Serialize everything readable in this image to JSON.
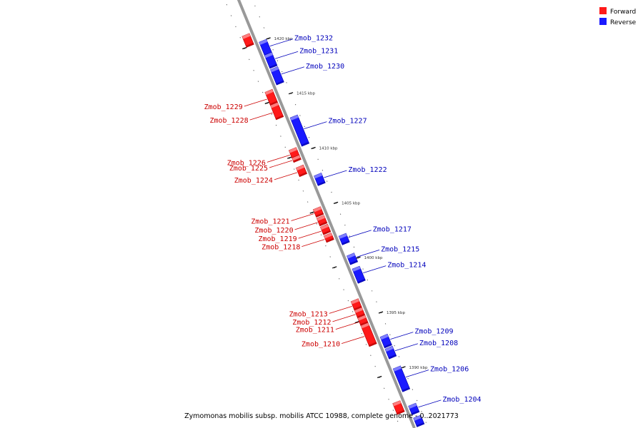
{
  "colors": {
    "forward": "#ff1a1a",
    "forward_dark": "#b00000",
    "forward_light": "#ff9090",
    "reverse": "#1a1aff",
    "reverse_dark": "#0000a8",
    "reverse_light": "#8f8fff",
    "forward_label": "#cc0000",
    "reverse_label": "#0000bb",
    "axis": "#999999"
  },
  "legend": [
    {
      "label": "Forward",
      "strand": "forward"
    },
    {
      "label": "Reverse",
      "strand": "reverse"
    }
  ],
  "caption": "Zymomonas mobilis subsp. mobilis ATCC 10988, complete genome - 0..2021773",
  "ticks": [
    {
      "kbp": 1420,
      "label": "1420 kbp"
    },
    {
      "kbp": 1415,
      "label": "1415 kbp"
    },
    {
      "kbp": 1410,
      "label": "1410 kbp"
    },
    {
      "kbp": 1405,
      "label": "1405 kbp"
    },
    {
      "kbp": 1400,
      "label": "1400 kbp"
    },
    {
      "kbp": 1395,
      "label": "1395 kbp"
    },
    {
      "kbp": 1390,
      "label": "1390 kbp"
    }
  ],
  "genes": [
    {
      "name": "",
      "strand": "forward",
      "kbp": 1421.0,
      "len": 1.0
    },
    {
      "name": "Zmob_1232",
      "strand": "reverse",
      "kbp": 1420.0,
      "len": 1.3
    },
    {
      "name": "Zmob_1231",
      "strand": "reverse",
      "kbp": 1418.8,
      "len": 1.2
    },
    {
      "name": "Zmob_1230",
      "strand": "reverse",
      "kbp": 1417.5,
      "len": 1.4
    },
    {
      "name": "Zmob_1229",
      "strand": "forward",
      "kbp": 1415.9,
      "len": 1.2
    },
    {
      "name": "Zmob_1228",
      "strand": "forward",
      "kbp": 1414.7,
      "len": 1.3
    },
    {
      "name": "Zmob_1227",
      "strand": "reverse",
      "kbp": 1413.1,
      "len": 2.6
    },
    {
      "name": "Zmob_1226",
      "strand": "forward",
      "kbp": 1410.6,
      "len": 0.8
    },
    {
      "name": "Zmob_1225",
      "strand": "forward",
      "kbp": 1409.9,
      "len": 0.4
    },
    {
      "name": "Zmob_1224",
      "strand": "forward",
      "kbp": 1409.0,
      "len": 0.8
    },
    {
      "name": "Zmob_1222",
      "strand": "reverse",
      "kbp": 1407.8,
      "len": 0.9
    },
    {
      "name": "Zmob_1221",
      "strand": "forward",
      "kbp": 1405.2,
      "len": 0.7
    },
    {
      "name": "Zmob_1220",
      "strand": "forward",
      "kbp": 1404.4,
      "len": 0.7
    },
    {
      "name": "Zmob_1219",
      "strand": "forward",
      "kbp": 1403.6,
      "len": 0.7
    },
    {
      "name": "Zmob_1218",
      "strand": "forward",
      "kbp": 1402.8,
      "len": 0.6
    },
    {
      "name": "Zmob_1217",
      "strand": "reverse",
      "kbp": 1402.3,
      "len": 0.8
    },
    {
      "name": "Zmob_1215",
      "strand": "reverse",
      "kbp": 1400.5,
      "len": 0.8
    },
    {
      "name": "Zmob_1214",
      "strand": "reverse",
      "kbp": 1399.3,
      "len": 1.3
    },
    {
      "name": "Zmob_1213",
      "strand": "forward",
      "kbp": 1396.8,
      "len": 0.8
    },
    {
      "name": "Zmob_1212",
      "strand": "forward",
      "kbp": 1396.0,
      "len": 0.7
    },
    {
      "name": "Zmob_1211",
      "strand": "forward",
      "kbp": 1395.3,
      "len": 0.7
    },
    {
      "name": "Zmob_1210",
      "strand": "forward",
      "kbp": 1394.6,
      "len": 1.9
    },
    {
      "name": "Zmob_1209",
      "strand": "reverse",
      "kbp": 1393.1,
      "len": 1.0
    },
    {
      "name": "Zmob_1208",
      "strand": "reverse",
      "kbp": 1392.0,
      "len": 0.9
    },
    {
      "name": "Zmob_1206",
      "strand": "reverse",
      "kbp": 1390.2,
      "len": 2.1
    },
    {
      "name": "",
      "strand": "forward",
      "kbp": 1387.5,
      "len": 1.0
    },
    {
      "name": "Zmob_1204",
      "strand": "reverse",
      "kbp": 1386.8,
      "len": 0.8
    },
    {
      "name": "",
      "strand": "reverse",
      "kbp": 1385.7,
      "len": 0.8
    }
  ]
}
